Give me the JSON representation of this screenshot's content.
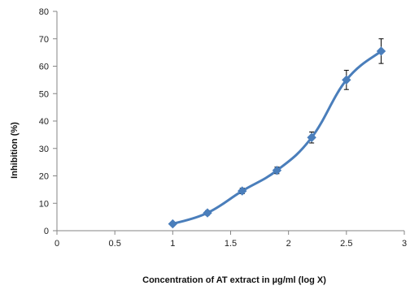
{
  "chart_data": {
    "type": "line",
    "title": "",
    "xlabel": "Concentration of AT extract in µg/ml (log X)",
    "ylabel": "Inhibition (%)",
    "xlim": [
      0,
      3
    ],
    "ylim": [
      0,
      80
    ],
    "x_ticks": [
      "0",
      "0.5",
      "1",
      "1.5",
      "2",
      "2.5",
      "3"
    ],
    "y_ticks": [
      "0",
      "10",
      "20",
      "30",
      "40",
      "50",
      "60",
      "70",
      "80"
    ],
    "grid": false,
    "legend": "none",
    "series": [
      {
        "color": "#4a7ebb",
        "marker": "diamond",
        "smooth": true,
        "x": [
          1.0,
          1.3,
          1.6,
          1.9,
          2.2,
          2.5,
          2.8
        ],
        "y": [
          2.5,
          6.5,
          14.5,
          22.0,
          34.0,
          55.0,
          65.5
        ],
        "error": [
          0.6,
          0.8,
          1.0,
          1.2,
          2.0,
          3.5,
          4.5
        ]
      }
    ]
  }
}
